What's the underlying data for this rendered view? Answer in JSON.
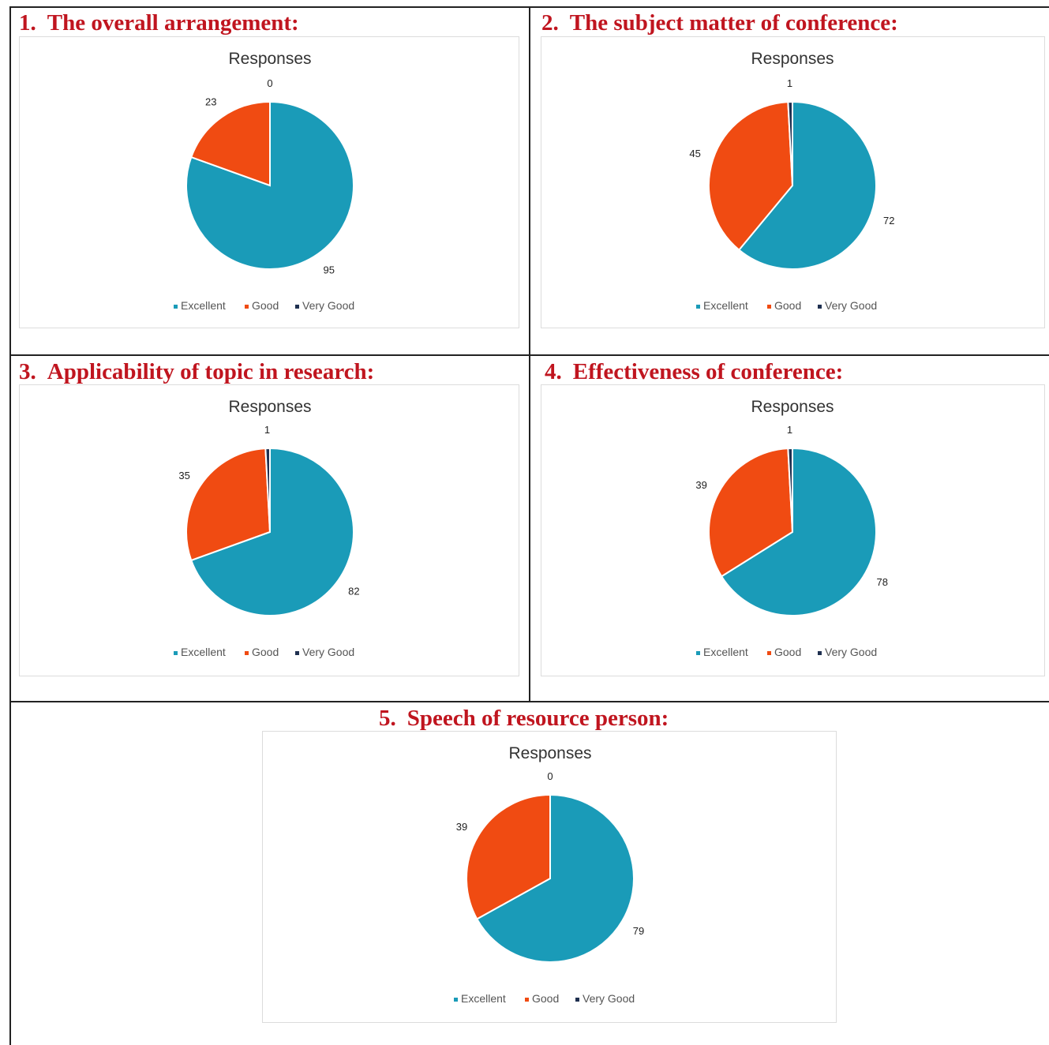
{
  "colors": {
    "excellent": "#1a9bb8",
    "good": "#f04b12",
    "very_good": "#1f3050",
    "heading": "#c0151f"
  },
  "sections": [
    {
      "number": "1.",
      "heading": "The overall arrangement:"
    },
    {
      "number": "2.",
      "heading": "The subject matter of conference:"
    },
    {
      "number": "3.",
      "heading": "Applicability of topic in research:"
    },
    {
      "number": "4.",
      "heading": "Effectiveness of conference:"
    },
    {
      "number": "5.",
      "heading": "Speech of resource person:"
    }
  ],
  "chart_data": [
    {
      "type": "pie",
      "title": "Responses",
      "categories": [
        "Excellent",
        "Good",
        "Very Good"
      ],
      "values": [
        95,
        23,
        0
      ],
      "legend": "bottom"
    },
    {
      "type": "pie",
      "title": "Responses",
      "categories": [
        "Excellent",
        "Good",
        "Very Good"
      ],
      "values": [
        72,
        45,
        1
      ],
      "legend": "bottom"
    },
    {
      "type": "pie",
      "title": "Responses",
      "categories": [
        "Excellent",
        "Good",
        "Very Good"
      ],
      "values": [
        82,
        35,
        1
      ],
      "legend": "bottom"
    },
    {
      "type": "pie",
      "title": "Responses",
      "categories": [
        "Excellent",
        "Good",
        "Very Good"
      ],
      "values": [
        78,
        39,
        1
      ],
      "legend": "bottom"
    },
    {
      "type": "pie",
      "title": "Responses",
      "categories": [
        "Excellent",
        "Good",
        "Very Good"
      ],
      "values": [
        79,
        39,
        0
      ],
      "legend": "bottom"
    }
  ]
}
